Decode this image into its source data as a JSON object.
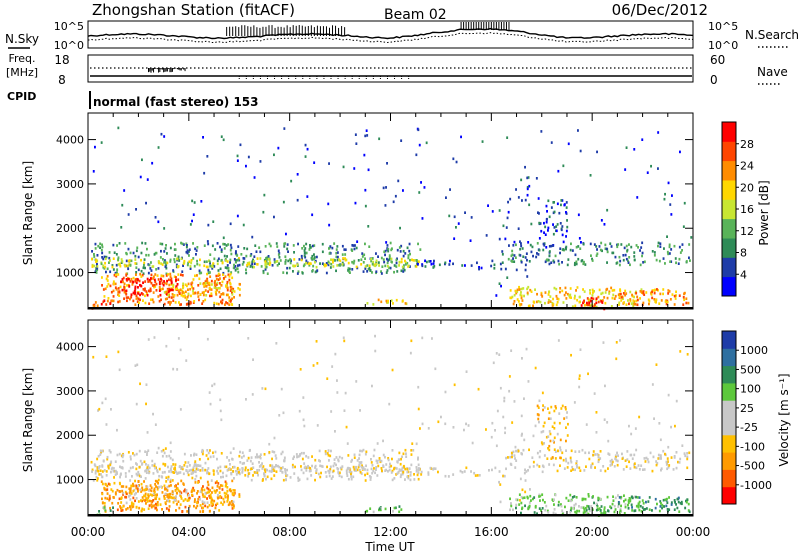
{
  "header": {
    "station": "Zhongshan Station (fitACF)",
    "beam": "Beam 02",
    "date": "06/Dec/2012"
  },
  "summary_panels": {
    "nsky_label": "N.Sky",
    "nsearch_label": "N.Search",
    "freq_label_line1": "Freq.",
    "freq_label_line2": "[MHz]",
    "nave_label": "Nave",
    "cpid_label": "CPID",
    "cpid_text": "normal (fast stereo) 153",
    "noise_ticks": [
      "10^5",
      "10^0"
    ],
    "freq_ticks": [
      "18",
      "8"
    ],
    "nave_ticks": [
      "60",
      "0"
    ]
  },
  "colors": {
    "power_scale": [
      "#0000ff",
      "#1e3ca8",
      "#2e8b57",
      "#59b359",
      "#c8e632",
      "#ffd700",
      "#ff8c00",
      "#ff4500",
      "#ff0000"
    ],
    "velocity_scale": [
      "#ff0000",
      "#ff5a00",
      "#ff9a00",
      "#ffc000",
      "#c8c8c8",
      "#c8c8c8",
      "#5dc83c",
      "#2e8b57",
      "#2e6fa0",
      "#1e3ca8"
    ]
  },
  "chart_data": [
    {
      "type": "heatmap",
      "panel": "power",
      "ylabel": "Slant Range [km]",
      "y_ticks": [
        "1000",
        "2000",
        "3000",
        "4000"
      ],
      "ylim": [
        200,
        4600
      ],
      "xlim": [
        0,
        24
      ],
      "colorbar_label": "Power [dB]",
      "colorbar_ticks": [
        "4",
        "8",
        "12",
        "16",
        "20",
        "24",
        "28"
      ]
    },
    {
      "type": "heatmap",
      "panel": "velocity",
      "ylabel": "Slant Range [km]",
      "y_ticks": [
        "1000",
        "2000",
        "3000",
        "4000"
      ],
      "ylim": [
        200,
        4600
      ],
      "xlim": [
        0,
        24
      ],
      "colorbar_label": "Velocity [m s⁻¹]",
      "colorbar_ticks": [
        "-1000",
        "-500",
        "-100",
        "-25",
        "25",
        "100",
        "500",
        "1000"
      ]
    }
  ],
  "xaxis": {
    "label": "Time UT",
    "tick_labels": [
      "00:00",
      "04:00",
      "08:00",
      "12:00",
      "16:00",
      "20:00",
      "00:00"
    ]
  }
}
